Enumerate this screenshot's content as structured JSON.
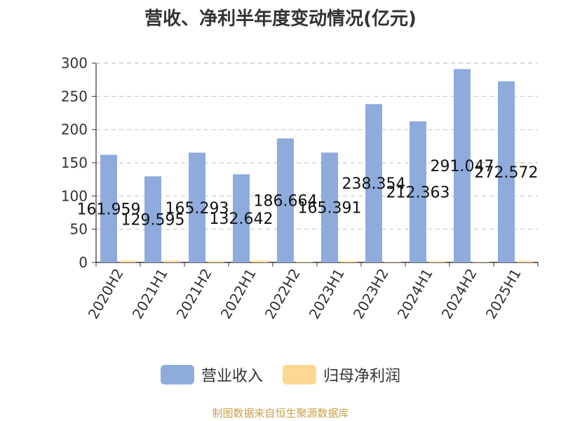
{
  "chart_data": {
    "type": "bar",
    "title": "营收、净利半年度变动情况(亿元)",
    "categories": [
      "2020H2",
      "2021H1",
      "2021H2",
      "2022H1",
      "2022H2",
      "2023H1",
      "2023H2",
      "2024H1",
      "2024H2",
      "2025H1"
    ],
    "series": [
      {
        "name": "营业收入",
        "color": "#8eabdc",
        "values": [
          161.959,
          129.595,
          165.293,
          132.642,
          186.664,
          165.391,
          238.354,
          212.363,
          291.047,
          272.572
        ],
        "labels": [
          "161.959",
          "129.595",
          "165.293",
          "132.642",
          "186.664",
          "165.391",
          "238.354",
          "212.363",
          "291.047",
          "272.572"
        ]
      },
      {
        "name": "归母净利润",
        "color": "#fdd895",
        "values": [
          2.8,
          2.6,
          1.9,
          2.7,
          1.0,
          2.1,
          0.8,
          1.9,
          0.7,
          2.3
        ]
      }
    ],
    "yticks": [
      "0",
      "50",
      "100",
      "150",
      "200",
      "250",
      "300"
    ],
    "ylim": [
      0,
      300
    ],
    "grid": true,
    "legend_position": "bottom"
  },
  "source_text": "制图数据来自恒生聚源数据库"
}
